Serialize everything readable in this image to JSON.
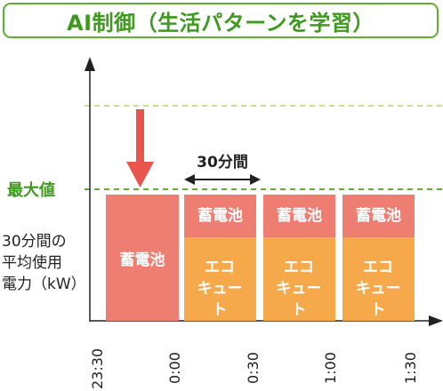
{
  "title": "AI制御（生活パターンを学習）",
  "y_axis_label": [
    "30分間の",
    "平均使用",
    "電力（kW）"
  ],
  "max_label": "最大値",
  "span_label": "30分間",
  "bars": [
    {
      "segments": [
        "蓄電池"
      ]
    },
    {
      "segments": [
        "蓄電池",
        "エコ キュート"
      ]
    },
    {
      "segments": [
        "蓄電池",
        "エコ キュート"
      ]
    },
    {
      "segments": [
        "蓄電池",
        "エコ キュート"
      ]
    }
  ],
  "time_ticks": [
    "23:30",
    "0:00",
    "0:30",
    "1:00",
    "1:30"
  ],
  "colors": {
    "battery": "#ee7d72",
    "ecocute": "#f6a94a",
    "green": "#5fae2f",
    "dash": "#a6cf55",
    "arrow": "#e8554e"
  }
}
